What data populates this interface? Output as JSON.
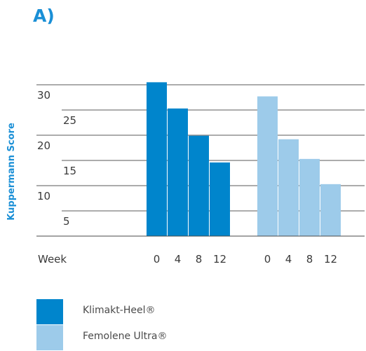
{
  "panel_label": "A)",
  "colors": {
    "series1": "#0085cc",
    "series2": "#9dcbea",
    "axis_text": "#3a3a3a",
    "accent": "#1a8fd6"
  },
  "chart_data": {
    "type": "bar",
    "ylabel": "Kuppermann Score",
    "xlabel": "Week",
    "y_tick_labels": [
      "30",
      "25",
      "20",
      "15",
      "10",
      "5"
    ],
    "ylim": [
      0,
      30
    ],
    "grid": true,
    "categories": [
      "0",
      "4",
      "8",
      "12"
    ],
    "series": [
      {
        "name": "Klimakt-Heel®",
        "values": [
          30.5,
          25.3,
          19.9,
          14.6
        ]
      },
      {
        "name": "Femolene Ultra®",
        "values": [
          27.7,
          19.2,
          15.3,
          10.3
        ]
      }
    ]
  }
}
